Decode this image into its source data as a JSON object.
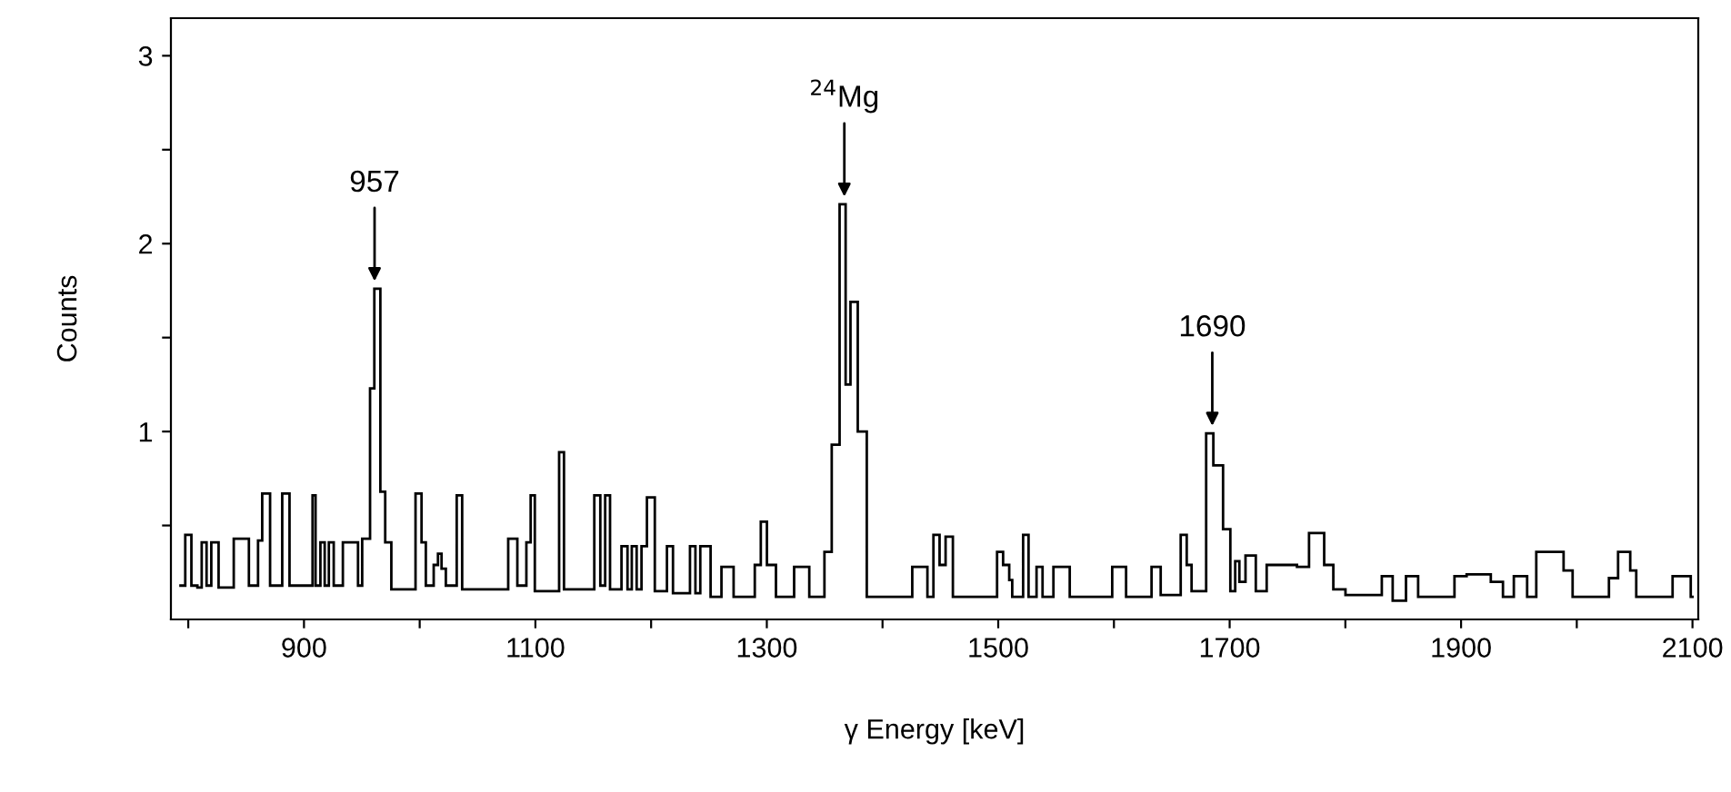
{
  "chart_data": {
    "type": "histogram",
    "xlabel": "γ Energy [keV]",
    "ylabel": "Counts",
    "color": "#000000",
    "bins": [
      792.2,
      797.4,
      802.7,
      807.9,
      811.6,
      815.8,
      819.9,
      826.2,
      839.3,
      852.4,
      860.3,
      863.9,
      870.7,
      881.2,
      887.5,
      907.4,
      910.0,
      914.2,
      917.9,
      921.5,
      925.7,
      933.6,
      946.7,
      950.3,
      957.1,
      960.8,
      966.0,
      970.2,
      975.5,
      996.4,
      1001.6,
      1005.3,
      1012.1,
      1015.8,
      1018.9,
      1022.6,
      1032.0,
      1036.7,
      1076.5,
      1084.4,
      1092.2,
      1095.9,
      1099.5,
      1120.5,
      1124.7,
      1150.9,
      1156.1,
      1160.3,
      1164.5,
      1174.4,
      1179.6,
      1183.3,
      1187.5,
      1191.7,
      1196.4,
      1203.2,
      1213.7,
      1218.9,
      1233.6,
      1238.3,
      1242.5,
      1251.4,
      1260.8,
      1271.3,
      1289.6,
      1294.8,
      1300.1,
      1307.9,
      1323.6,
      1336.7,
      1349.8,
      1356.1,
      1362.9,
      1368.1,
      1372.3,
      1378.6,
      1386.4,
      1425.7,
      1438.8,
      1444.0,
      1449.3,
      1454.5,
      1460.8,
      1499.0,
      1504.2,
      1509.5,
      1512.1,
      1521.5,
      1526.2,
      1533.1,
      1538.3,
      1547.7,
      1561.8,
      1598.5,
      1610.5,
      1632.5,
      1640.4,
      1657.7,
      1662.9,
      1667.1,
      1679.7,
      1685.9,
      1694.3,
      1700.6,
      1704.8,
      1708.4,
      1713.7,
      1722.6,
      1732.0,
      1758.2,
      1768.6,
      1781.7,
      1789.6,
      1800.1,
      1831.5,
      1840.9,
      1852.4,
      1862.9,
      1894.3,
      1904.8,
      1925.7,
      1936.2,
      1945.6,
      1957.1,
      1965.0,
      1988.6,
      1996.4,
      2027.8,
      2035.7,
      2046.2,
      2051.4,
      2082.8,
      2098.5,
      2101.1
    ],
    "values": [
      0.18,
      0.45,
      0.18,
      0.17,
      0.41,
      0.18,
      0.41,
      0.17,
      0.43,
      0.18,
      0.42,
      0.67,
      0.18,
      0.67,
      0.18,
      0.66,
      0.18,
      0.41,
      0.18,
      0.41,
      0.18,
      0.41,
      0.18,
      0.43,
      1.23,
      1.76,
      0.68,
      0.41,
      0.16,
      0.67,
      0.41,
      0.18,
      0.29,
      0.35,
      0.27,
      0.18,
      0.66,
      0.16,
      0.43,
      0.18,
      0.41,
      0.66,
      0.15,
      0.89,
      0.16,
      0.66,
      0.18,
      0.66,
      0.16,
      0.39,
      0.16,
      0.39,
      0.16,
      0.39,
      0.65,
      0.15,
      0.39,
      0.14,
      0.39,
      0.14,
      0.39,
      0.12,
      0.28,
      0.12,
      0.29,
      0.52,
      0.29,
      0.12,
      0.28,
      0.12,
      0.36,
      0.93,
      2.21,
      1.25,
      1.69,
      1.0,
      0.12,
      0.28,
      0.12,
      0.45,
      0.29,
      0.44,
      0.12,
      0.36,
      0.29,
      0.21,
      0.12,
      0.45,
      0.12,
      0.28,
      0.12,
      0.28,
      0.12,
      0.28,
      0.12,
      0.28,
      0.13,
      0.45,
      0.29,
      0.15,
      0.99,
      0.82,
      0.48,
      0.15,
      0.31,
      0.2,
      0.34,
      0.15,
      0.29,
      0.28,
      0.46,
      0.29,
      0.16,
      0.13,
      0.23,
      0.1,
      0.23,
      0.12,
      0.23,
      0.24,
      0.2,
      0.12,
      0.23,
      0.12,
      0.36,
      0.26,
      0.12,
      0.22,
      0.36,
      0.26,
      0.12,
      0.23,
      0.12
    ],
    "xlim": [
      785,
      2105
    ],
    "xticks": [
      {
        "value": 800,
        "label": null
      },
      900,
      {
        "value": 1000,
        "label": null
      },
      1100,
      {
        "value": 1200,
        "label": null
      },
      1300,
      {
        "value": 1400,
        "label": null
      },
      1500,
      {
        "value": 1600,
        "label": null
      },
      1700,
      {
        "value": 1800,
        "label": null
      },
      1900,
      {
        "value": 2000,
        "label": null
      },
      2100
    ],
    "ylim": [
      0,
      3.2
    ],
    "yticks": [
      {
        "value": 0.5,
        "label": null
      },
      1,
      {
        "value": 1.5,
        "label": null
      },
      2,
      {
        "value": 2.5,
        "label": null
      },
      3
    ],
    "grid": false,
    "legend": false,
    "annotations": [
      {
        "text": "957",
        "x": 961,
        "y": 1.76
      },
      {
        "text": "$^{24}$Mg",
        "x": 1367,
        "y": 2.21
      },
      {
        "text": "1690",
        "x": 1685,
        "y": 0.99
      }
    ]
  }
}
